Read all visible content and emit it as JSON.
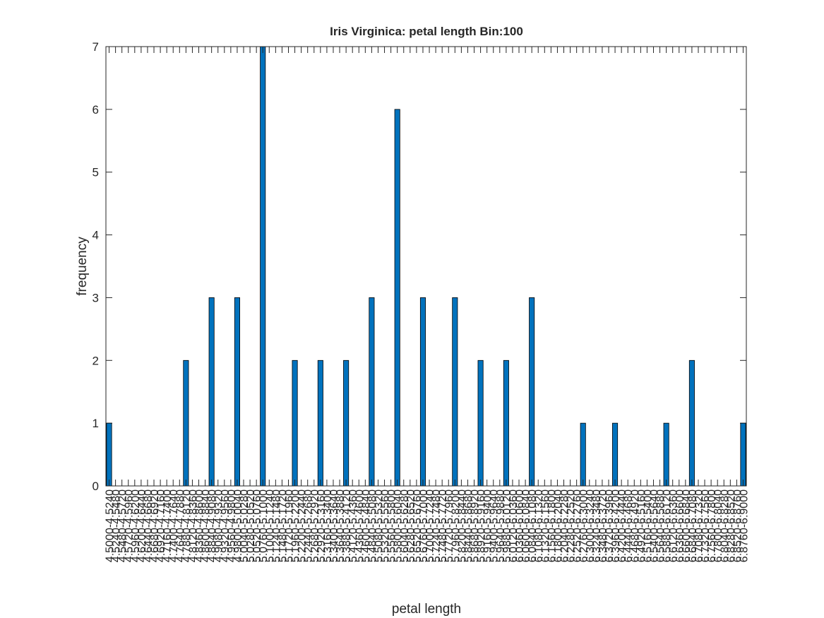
{
  "chart_data": {
    "type": "bar",
    "title": "Iris Virginica: petal length Bin:100",
    "xlabel": "petal length",
    "ylabel": "frequency",
    "color": "#0072bd",
    "categories": [
      "4.5000-4.5240",
      "4.5240-4.5480",
      "4.5480-4.5720",
      "4.5720-4.5960",
      "4.5960-4.6200",
      "4.6200-4.6440",
      "4.6440-4.6680",
      "4.6680-4.6920",
      "4.6920-4.7160",
      "4.7160-4.7400",
      "4.7400-4.7640",
      "4.7640-4.7880",
      "4.7880-4.8120",
      "4.8120-4.8360",
      "4.8360-4.8600",
      "4.8600-4.8840",
      "4.8840-4.9080",
      "4.9080-4.9320",
      "4.9320-4.9560",
      "4.9560-4.9800",
      "4.9800-5.0040",
      "5.0040-5.0280",
      "5.0280-5.0520",
      "5.0520-5.0760",
      "5.0760-5.1000",
      "5.1000-5.1240",
      "5.1240-5.1480",
      "5.1480-5.1720",
      "5.1720-5.1960",
      "5.1960-5.2200",
      "5.2200-5.2440",
      "5.2440-5.2680",
      "5.2680-5.2920",
      "5.2920-5.3160",
      "5.3160-5.3400",
      "5.3400-5.3640",
      "5.3640-5.3880",
      "5.3880-5.4120",
      "5.4120-5.4360",
      "5.4360-5.4600",
      "5.4600-5.4840",
      "5.4840-5.5080",
      "5.5080-5.5320",
      "5.5320-5.5560",
      "5.5560-5.5800",
      "5.5800-5.6040",
      "5.6040-5.6280",
      "5.6280-5.6520",
      "5.6520-5.6760",
      "5.6760-5.7000",
      "5.7000-5.7240",
      "5.7240-5.7480",
      "5.7480-5.7720",
      "5.7720-5.7960",
      "5.7960-5.8200",
      "5.8200-5.8440",
      "5.8440-5.8680",
      "5.8680-5.8920",
      "5.8920-5.9160",
      "5.9160-5.9400",
      "5.9400-5.9640",
      "5.9640-5.9880",
      "5.9880-6.0120",
      "6.0120-6.0360",
      "6.0360-6.0600",
      "6.0600-6.0840",
      "6.0840-6.1080",
      "6.1080-6.1320",
      "6.1320-6.1560",
      "6.1560-6.1800",
      "6.1800-6.2040",
      "6.2040-6.2280",
      "6.2280-6.2520",
      "6.2520-6.2760",
      "6.2760-6.3000",
      "6.3000-6.3240",
      "6.3240-6.3480",
      "6.3480-6.3720",
      "6.3720-6.3960",
      "6.3960-6.4200",
      "6.4200-6.4440",
      "6.4440-6.4680",
      "6.4680-6.4920",
      "6.4920-6.5160",
      "6.5160-6.5400",
      "6.5400-6.5640",
      "6.5640-6.5880",
      "6.5880-6.6120",
      "6.6120-6.6360",
      "6.6360-6.6600",
      "6.6600-6.6840",
      "6.6840-6.7080",
      "6.7080-6.7320",
      "6.7320-6.7560",
      "6.7560-6.7800",
      "6.7800-6.8040",
      "6.8040-6.8280",
      "6.8280-6.8520",
      "6.8520-6.8760",
      "6.8760-6.9000"
    ],
    "values": [
      1,
      0,
      0,
      0,
      0,
      0,
      0,
      0,
      0,
      0,
      0,
      0,
      2,
      0,
      0,
      0,
      3,
      0,
      0,
      0,
      3,
      0,
      0,
      0,
      7,
      0,
      0,
      0,
      0,
      2,
      0,
      0,
      0,
      2,
      0,
      0,
      0,
      2,
      0,
      0,
      0,
      3,
      0,
      0,
      0,
      6,
      0,
      0,
      0,
      3,
      0,
      0,
      0,
      0,
      3,
      0,
      0,
      0,
      2,
      0,
      0,
      0,
      2,
      0,
      0,
      0,
      3,
      0,
      0,
      0,
      0,
      0,
      0,
      0,
      1,
      0,
      0,
      0,
      0,
      1,
      0,
      0,
      0,
      0,
      0,
      0,
      0,
      1,
      0,
      0,
      0,
      2,
      0,
      0,
      0,
      0,
      0,
      0,
      0,
      1
    ],
    "ylim": [
      0,
      7
    ],
    "yticks": [
      0,
      1,
      2,
      3,
      4,
      5,
      6,
      7
    ],
    "grid": false
  }
}
